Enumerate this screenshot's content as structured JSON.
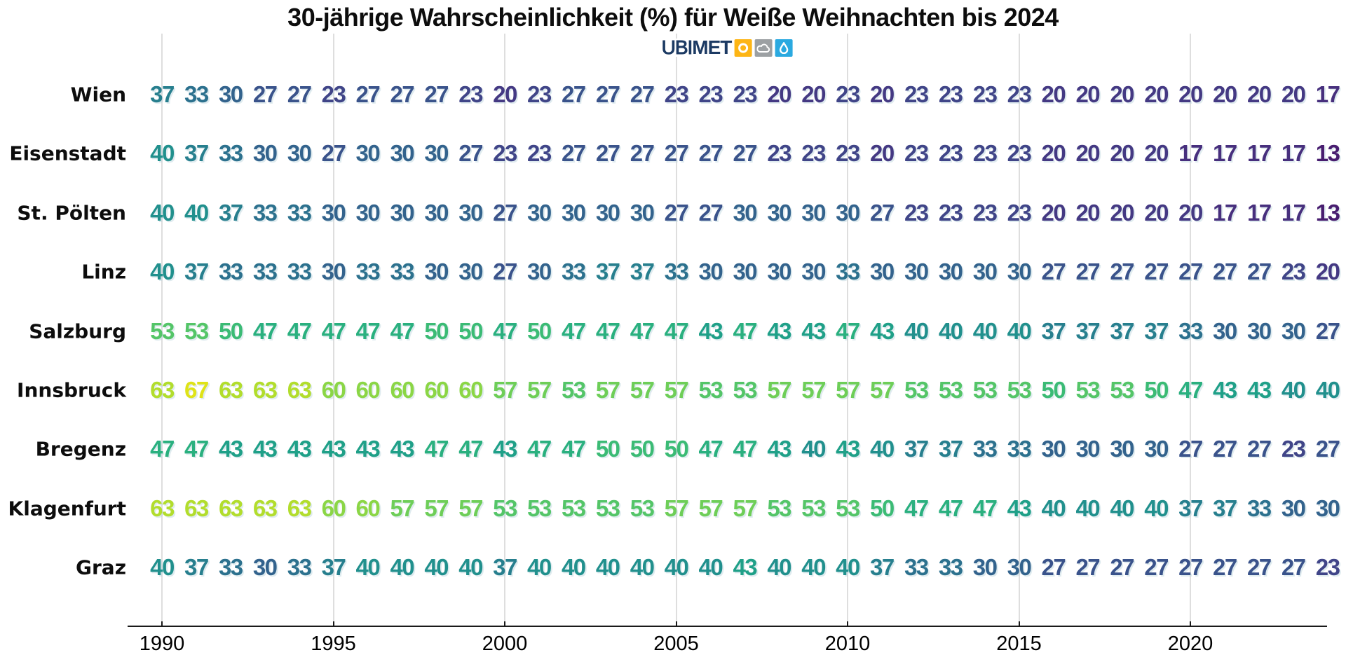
{
  "title": "30-jährige Wahrscheinlichkeit (%) für Weiße Weihnachten bis 2024",
  "logo": {
    "ubi": "UBI",
    "met": "MET",
    "navy": "#1c3a63",
    "sun_bg": "#fdb515",
    "cloud_bg": "#9ca0a3",
    "drop_bg": "#2aa9e0"
  },
  "chart_data": {
    "type": "heatmap",
    "title": "30-jährige Wahrscheinlichkeit (%) für Weiße Weihnachten bis 2024",
    "unit": "%",
    "colormap": "viridis",
    "grid": true,
    "x_years": [
      1990,
      1991,
      1992,
      1993,
      1994,
      1995,
      1996,
      1997,
      1998,
      1999,
      2000,
      2001,
      2002,
      2003,
      2004,
      2005,
      2006,
      2007,
      2008,
      2009,
      2010,
      2011,
      2012,
      2013,
      2014,
      2015,
      2016,
      2017,
      2018,
      2019,
      2020,
      2021,
      2022,
      2023,
      2024
    ],
    "x_tick_years": [
      1990,
      1995,
      2000,
      2005,
      2010,
      2015,
      2020
    ],
    "x_tick_labels": [
      "1990",
      "1995",
      "2000",
      "2005",
      "2010",
      "2015",
      "2020"
    ],
    "categories": [
      "Wien",
      "Eisenstadt",
      "St. Pölten",
      "Linz",
      "Salzburg",
      "Innsbruck",
      "Bregenz",
      "Klagenfurt",
      "Graz"
    ],
    "series": [
      {
        "name": "Wien",
        "values": [
          37,
          33,
          30,
          27,
          27,
          23,
          27,
          27,
          27,
          23,
          20,
          23,
          27,
          27,
          27,
          23,
          23,
          23,
          20,
          20,
          23,
          20,
          23,
          23,
          23,
          23,
          20,
          20,
          20,
          20,
          20,
          20,
          20,
          20,
          17
        ]
      },
      {
        "name": "Eisenstadt",
        "values": [
          40,
          37,
          33,
          30,
          30,
          27,
          30,
          30,
          30,
          27,
          23,
          23,
          27,
          27,
          27,
          27,
          27,
          27,
          23,
          23,
          23,
          20,
          23,
          23,
          23,
          23,
          20,
          20,
          20,
          20,
          17,
          17,
          17,
          17,
          13
        ]
      },
      {
        "name": "St. Pölten",
        "values": [
          40,
          40,
          37,
          33,
          33,
          30,
          30,
          30,
          30,
          30,
          27,
          30,
          30,
          30,
          30,
          27,
          27,
          30,
          30,
          30,
          30,
          27,
          23,
          23,
          23,
          23,
          20,
          20,
          20,
          20,
          20,
          17,
          17,
          17,
          13
        ]
      },
      {
        "name": "Linz",
        "values": [
          40,
          37,
          33,
          33,
          33,
          30,
          33,
          33,
          30,
          30,
          27,
          30,
          33,
          37,
          37,
          33,
          30,
          30,
          30,
          30,
          33,
          30,
          30,
          30,
          30,
          30,
          27,
          27,
          27,
          27,
          27,
          27,
          27,
          23,
          20
        ]
      },
      {
        "name": "Salzburg",
        "values": [
          53,
          53,
          50,
          47,
          47,
          47,
          47,
          47,
          50,
          50,
          47,
          50,
          47,
          47,
          47,
          47,
          43,
          47,
          43,
          43,
          47,
          43,
          40,
          40,
          40,
          40,
          37,
          37,
          37,
          37,
          33,
          30,
          30,
          30,
          27
        ]
      },
      {
        "name": "Innsbruck",
        "values": [
          63,
          67,
          63,
          63,
          63,
          60,
          60,
          60,
          60,
          60,
          57,
          57,
          53,
          57,
          57,
          57,
          53,
          53,
          57,
          57,
          57,
          57,
          53,
          53,
          53,
          53,
          50,
          53,
          53,
          50,
          47,
          43,
          43,
          40,
          40
        ]
      },
      {
        "name": "Bregenz",
        "values": [
          47,
          47,
          43,
          43,
          43,
          43,
          43,
          43,
          47,
          47,
          43,
          47,
          47,
          50,
          50,
          50,
          47,
          47,
          43,
          40,
          43,
          40,
          37,
          37,
          33,
          33,
          30,
          30,
          30,
          30,
          27,
          27,
          27,
          23,
          27
        ]
      },
      {
        "name": "Klagenfurt",
        "values": [
          63,
          63,
          63,
          63,
          63,
          60,
          60,
          57,
          57,
          57,
          53,
          53,
          53,
          53,
          53,
          57,
          57,
          57,
          53,
          53,
          53,
          50,
          47,
          47,
          47,
          43,
          40,
          40,
          40,
          40,
          37,
          37,
          33,
          30,
          30
        ]
      },
      {
        "name": "Graz",
        "values": [
          40,
          37,
          33,
          30,
          33,
          37,
          40,
          40,
          40,
          40,
          37,
          40,
          40,
          40,
          40,
          40,
          40,
          43,
          40,
          40,
          40,
          37,
          33,
          33,
          30,
          30,
          27,
          27,
          27,
          27,
          27,
          27,
          27,
          27,
          23
        ]
      }
    ],
    "value_colors": {
      "13": "#481d6f",
      "17": "#472f7d",
      "20": "#443983",
      "23": "#404588",
      "27": "#3a538b",
      "30": "#33638d",
      "33": "#2c718e",
      "37": "#277f8e",
      "40": "#21908d",
      "43": "#1fa088",
      "47": "#2ab07f",
      "50": "#3bbb75",
      "53": "#54c568",
      "57": "#6ece58",
      "60": "#8bd646",
      "63": "#b2dd2d",
      "67": "#dfe318"
    },
    "value_range": [
      13,
      67
    ]
  }
}
